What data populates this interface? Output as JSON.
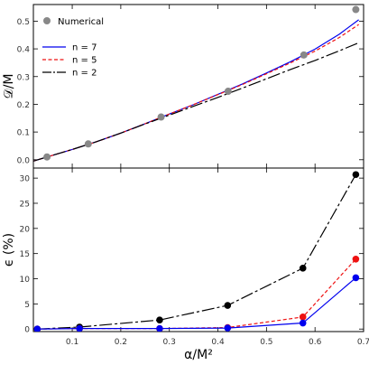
{
  "chart_data": [
    {
      "type": "line",
      "ylabel": "𝒟/M",
      "xlim": [
        0.02,
        0.7
      ],
      "ylim": [
        -0.03,
        0.56
      ],
      "xticks": [
        0.1,
        0.2,
        0.3,
        0.4,
        0.5,
        0.6,
        0.7
      ],
      "xtick_labels": [
        "0.1",
        "0.2",
        "0.3",
        "0.4",
        "0.5",
        "0.6",
        "0.7"
      ],
      "yticks": [
        0.0,
        0.1,
        0.2,
        0.3,
        0.4,
        0.5
      ],
      "ytick_labels": [
        "0.0",
        "0.1",
        "0.2",
        "0.3",
        "0.4",
        "0.5"
      ],
      "grid": false,
      "legend_position": "top-left",
      "legend": [
        "Numerical",
        "n = 7",
        "n = 5",
        "n = 2"
      ],
      "scatter": {
        "name": "Numerical",
        "color": "#888888",
        "x": [
          0.048,
          0.133,
          0.283,
          0.421,
          0.577,
          0.684
        ],
        "y": [
          0.01,
          0.057,
          0.154,
          0.247,
          0.378,
          0.542
        ]
      },
      "series": [
        {
          "name": "n = 7",
          "color": "#0000ee",
          "style": "solid",
          "x": [
            0.02,
            0.05,
            0.1,
            0.15,
            0.2,
            0.25,
            0.3,
            0.35,
            0.4,
            0.45,
            0.5,
            0.55,
            0.6,
            0.65,
            0.69
          ],
          "y": [
            -0.005,
            0.011,
            0.037,
            0.065,
            0.096,
            0.13,
            0.165,
            0.199,
            0.236,
            0.273,
            0.313,
            0.354,
            0.399,
            0.453,
            0.505
          ]
        },
        {
          "name": "n = 5",
          "color": "#ee1111",
          "style": "dashed",
          "x": [
            0.02,
            0.05,
            0.1,
            0.15,
            0.2,
            0.25,
            0.3,
            0.35,
            0.4,
            0.45,
            0.5,
            0.55,
            0.6,
            0.65,
            0.69
          ],
          "y": [
            -0.005,
            0.011,
            0.037,
            0.065,
            0.096,
            0.13,
            0.165,
            0.199,
            0.235,
            0.271,
            0.31,
            0.35,
            0.392,
            0.441,
            0.488
          ]
        },
        {
          "name": "n = 2",
          "color": "#000000",
          "style": "longdash",
          "x": [
            0.02,
            0.05,
            0.1,
            0.15,
            0.2,
            0.25,
            0.3,
            0.35,
            0.4,
            0.45,
            0.5,
            0.55,
            0.6,
            0.65,
            0.69
          ],
          "y": [
            -0.005,
            0.011,
            0.037,
            0.065,
            0.096,
            0.129,
            0.161,
            0.193,
            0.225,
            0.258,
            0.292,
            0.326,
            0.358,
            0.393,
            0.422
          ]
        }
      ]
    },
    {
      "type": "line",
      "xlabel": "α/M²",
      "ylabel": "ϵ (%)",
      "xlim": [
        0.02,
        0.7
      ],
      "ylim": [
        -0.5,
        32
      ],
      "xticks": [
        0.1,
        0.2,
        0.3,
        0.4,
        0.5,
        0.6,
        0.7
      ],
      "xtick_labels": [
        "0.1",
        "0.2",
        "0.3",
        "0.4",
        "0.5",
        "0.6",
        "0.7"
      ],
      "yticks": [
        0,
        5,
        10,
        15,
        20,
        25,
        30
      ],
      "ytick_labels": [
        "0",
        "5",
        "10",
        "15",
        "20",
        "25",
        "30"
      ],
      "grid": false,
      "x": [
        0.028,
        0.115,
        0.28,
        0.42,
        0.575,
        0.684
      ],
      "series": [
        {
          "name": "n = 7",
          "color": "#0000ee",
          "style": "solid",
          "values": [
            0.0,
            0.1,
            0.1,
            0.2,
            1.2,
            10.2
          ]
        },
        {
          "name": "n = 5",
          "color": "#ee1111",
          "style": "dashed",
          "values": [
            0.0,
            0.1,
            0.1,
            0.3,
            2.4,
            13.9
          ]
        },
        {
          "name": "n = 2",
          "color": "#000000",
          "style": "longdash",
          "values": [
            0.0,
            0.4,
            1.8,
            4.7,
            12.1,
            30.7
          ]
        }
      ]
    }
  ]
}
